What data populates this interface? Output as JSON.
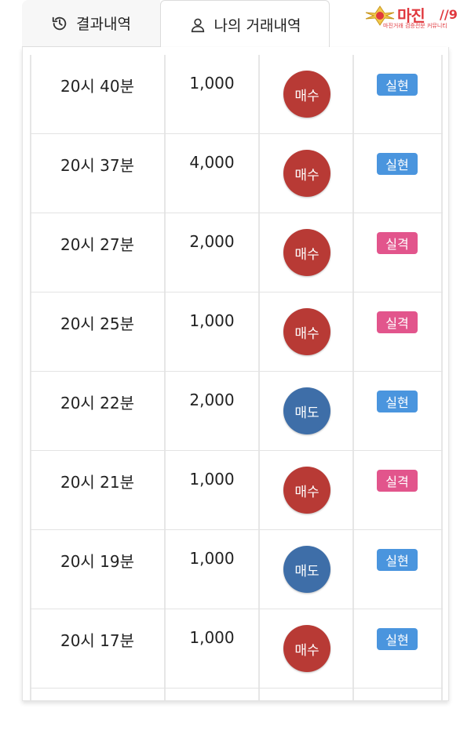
{
  "tabs": {
    "history": {
      "label": "결과내역",
      "icon": "history-icon"
    },
    "my_trades": {
      "label": "나의 거래내역",
      "icon": "user-icon"
    }
  },
  "logo": {
    "brand": "마진",
    "tagline": "마진거래 검증전문 커뮤니티"
  },
  "colors": {
    "buy": "#b83a35",
    "sell": "#3e6ea8",
    "success": "#4a95de",
    "fail": "#e2558c"
  },
  "trades": [
    {
      "time": "20시 40분",
      "amount": "1,000",
      "side": "매수",
      "side_type": "buy",
      "result": "실현",
      "result_type": "success"
    },
    {
      "time": "20시 37분",
      "amount": "4,000",
      "side": "매수",
      "side_type": "buy",
      "result": "실현",
      "result_type": "success"
    },
    {
      "time": "20시 27분",
      "amount": "2,000",
      "side": "매수",
      "side_type": "buy",
      "result": "실격",
      "result_type": "fail"
    },
    {
      "time": "20시 25분",
      "amount": "1,000",
      "side": "매수",
      "side_type": "buy",
      "result": "실격",
      "result_type": "fail"
    },
    {
      "time": "20시 22분",
      "amount": "2,000",
      "side": "매도",
      "side_type": "sell",
      "result": "실현",
      "result_type": "success"
    },
    {
      "time": "20시 21분",
      "amount": "1,000",
      "side": "매수",
      "side_type": "buy",
      "result": "실격",
      "result_type": "fail"
    },
    {
      "time": "20시 19분",
      "amount": "1,000",
      "side": "매도",
      "side_type": "sell",
      "result": "실현",
      "result_type": "success"
    },
    {
      "time": "20시 17분",
      "amount": "1,000",
      "side": "매수",
      "side_type": "buy",
      "result": "실현",
      "result_type": "success"
    }
  ]
}
